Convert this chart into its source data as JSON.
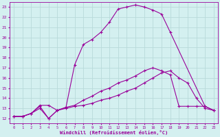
{
  "xlabel": "Windchill (Refroidissement éolien,°C)",
  "background_color": "#d4f0f0",
  "grid_color": "#b8dada",
  "line_color": "#990099",
  "xlim": [
    -0.5,
    23.5
  ],
  "ylim": [
    11.5,
    23.5
  ],
  "xticks": [
    0,
    1,
    2,
    3,
    4,
    5,
    6,
    7,
    8,
    9,
    10,
    11,
    12,
    13,
    14,
    15,
    16,
    17,
    18,
    19,
    20,
    21,
    22,
    23
  ],
  "yticks": [
    12,
    13,
    14,
    15,
    16,
    17,
    18,
    19,
    20,
    21,
    22,
    23
  ],
  "series1_x": [
    0,
    1,
    2,
    3,
    4,
    5,
    6,
    7,
    8,
    9,
    10,
    11,
    12,
    13,
    14,
    15,
    16,
    17,
    18,
    22,
    23
  ],
  "series1_y": [
    12.2,
    12.2,
    12.5,
    13.2,
    12.0,
    12.8,
    13.1,
    17.3,
    19.3,
    19.8,
    20.5,
    21.5,
    22.8,
    23.0,
    23.2,
    23.0,
    22.7,
    22.3,
    20.5,
    13.2,
    12.8
  ],
  "series2_x": [
    0,
    1,
    2,
    3,
    4,
    5,
    6,
    7,
    8,
    9,
    10,
    11,
    12,
    13,
    14,
    15,
    16,
    17,
    18,
    19,
    20,
    21,
    22,
    23
  ],
  "series2_y": [
    12.2,
    12.2,
    12.5,
    13.3,
    13.3,
    12.8,
    13.1,
    13.3,
    13.8,
    14.2,
    14.7,
    15.0,
    15.5,
    15.8,
    16.2,
    16.7,
    17.0,
    16.7,
    16.3,
    13.2,
    13.2,
    13.2,
    13.2,
    12.8
  ],
  "series3_x": [
    0,
    1,
    2,
    3,
    4,
    5,
    6,
    7,
    8,
    9,
    10,
    11,
    12,
    13,
    14,
    15,
    16,
    17,
    18,
    19,
    20,
    21,
    22,
    23
  ],
  "series3_y": [
    12.2,
    12.2,
    12.5,
    13.0,
    12.0,
    12.8,
    13.0,
    13.2,
    13.3,
    13.5,
    13.8,
    14.0,
    14.3,
    14.7,
    15.0,
    15.5,
    16.0,
    16.5,
    16.7,
    16.0,
    15.5,
    14.0,
    13.0,
    12.8
  ]
}
